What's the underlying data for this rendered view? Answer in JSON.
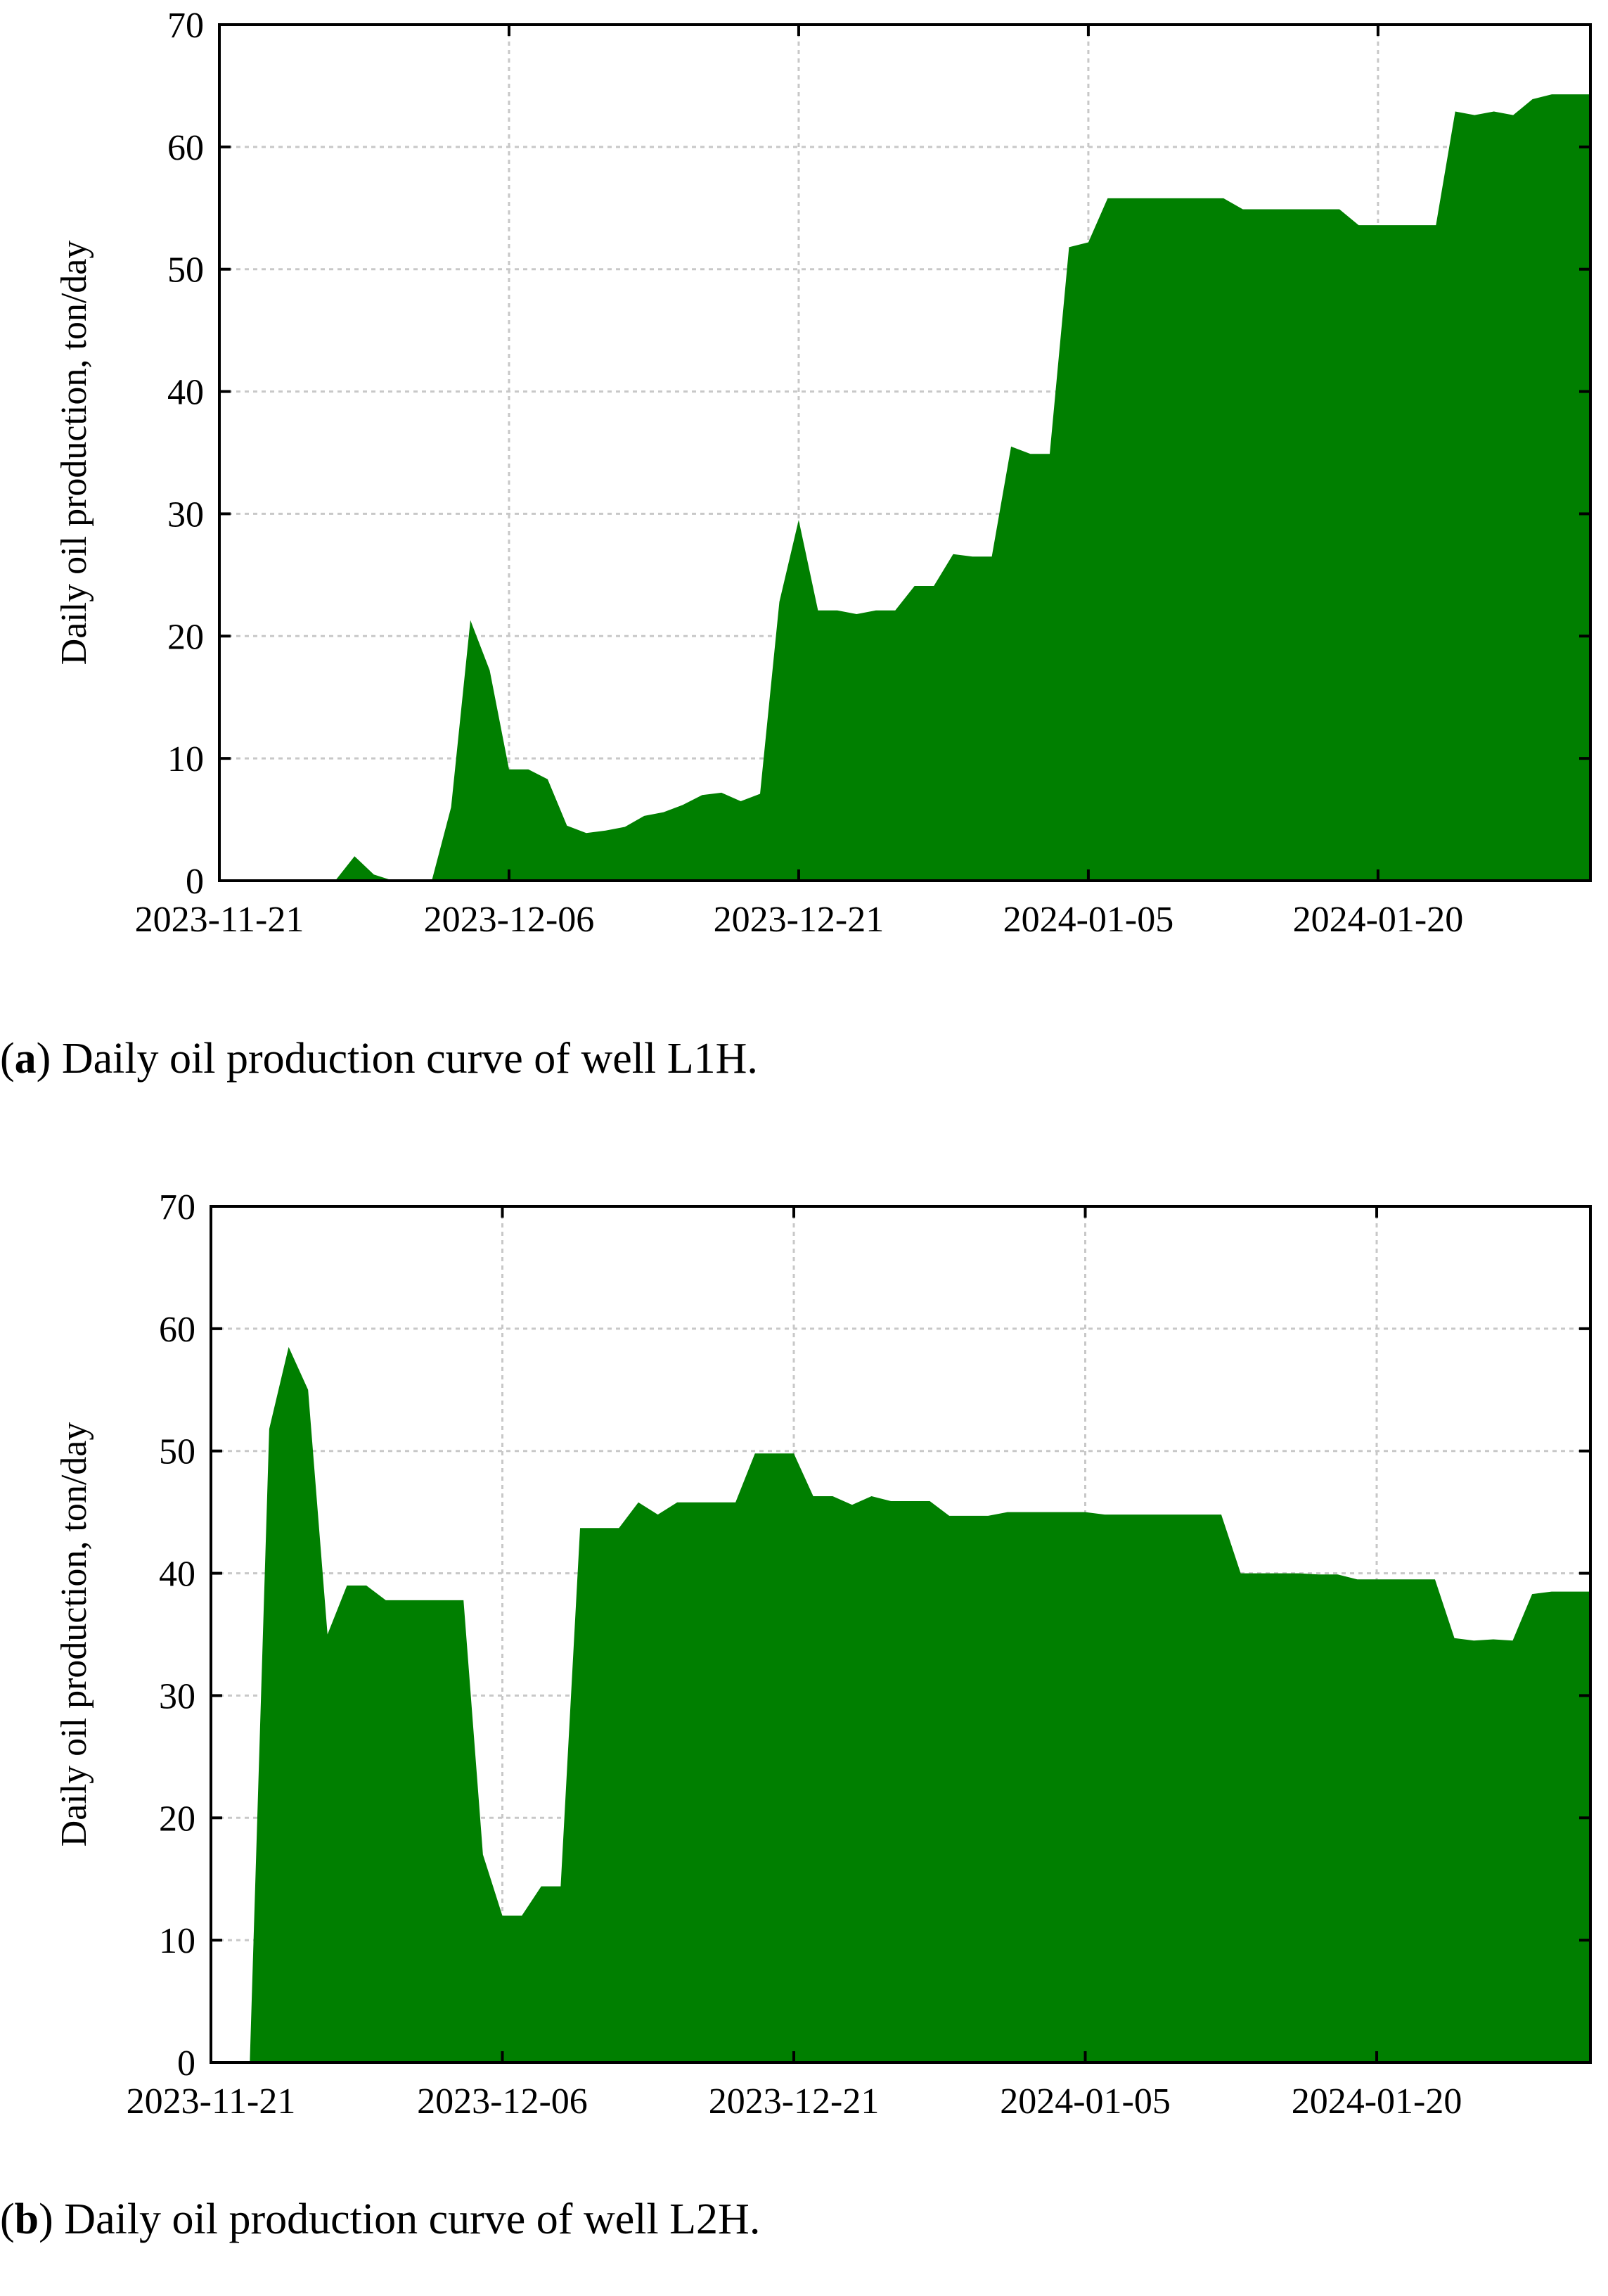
{
  "chart_data": [
    {
      "type": "area",
      "title": "",
      "ylabel": "Daily oil production, ton/day",
      "xlabel": "",
      "x_ticks": [
        "2023-11-21",
        "2023-12-06",
        "2023-12-21",
        "2024-01-05",
        "2024-01-20"
      ],
      "y_ticks": [
        "0",
        "10",
        "20",
        "30",
        "40",
        "50",
        "60",
        "70"
      ],
      "xlim": [
        "2023-11-21",
        "2024-01-31"
      ],
      "ylim": [
        0,
        70
      ],
      "grid": true,
      "color": "#007f00",
      "caption_label": "a",
      "caption_text": " Daily oil production curve of well L1H.",
      "x": [
        "2023-11-27",
        "2023-11-28",
        "2023-11-29",
        "2023-11-30",
        "2023-12-01",
        "2023-12-02",
        "2023-12-03",
        "2023-12-04",
        "2023-12-05",
        "2023-12-06",
        "2023-12-07",
        "2023-12-08",
        "2023-12-09",
        "2023-12-10",
        "2023-12-11",
        "2023-12-12",
        "2023-12-13",
        "2023-12-14",
        "2023-12-15",
        "2023-12-16",
        "2023-12-17",
        "2023-12-18",
        "2023-12-19",
        "2023-12-20",
        "2023-12-21",
        "2023-12-22",
        "2023-12-23",
        "2023-12-24",
        "2023-12-25",
        "2023-12-26",
        "2023-12-27",
        "2023-12-28",
        "2023-12-29",
        "2023-12-30",
        "2023-12-31",
        "2024-01-01",
        "2024-01-02",
        "2024-01-03",
        "2024-01-04",
        "2024-01-05",
        "2024-01-06",
        "2024-01-07",
        "2024-01-08",
        "2024-01-09",
        "2024-01-10",
        "2024-01-11",
        "2024-01-12",
        "2024-01-13",
        "2024-01-14",
        "2024-01-15",
        "2024-01-16",
        "2024-01-17",
        "2024-01-18",
        "2024-01-19",
        "2024-01-20",
        "2024-01-21",
        "2024-01-22",
        "2024-01-23",
        "2024-01-24",
        "2024-01-25",
        "2024-01-26",
        "2024-01-27",
        "2024-01-28",
        "2024-01-29",
        "2024-01-30",
        "2024-01-31"
      ],
      "values": [
        0,
        2,
        0.5,
        0,
        0,
        0,
        6,
        21.3,
        17.2,
        9.1,
        9.1,
        8.3,
        4.5,
        3.9,
        4.1,
        4.4,
        5.3,
        5.6,
        6.2,
        7.0,
        7.2,
        6.5,
        7.1,
        22.8,
        29.5,
        22.1,
        22.1,
        21.8,
        22.1,
        22.1,
        24.1,
        24.1,
        26.7,
        26.5,
        26.5,
        35.5,
        34.9,
        34.9,
        51.8,
        52.2,
        55.8,
        55.8,
        55.8,
        55.8,
        55.8,
        55.8,
        55.8,
        54.9,
        54.9,
        54.9,
        54.9,
        54.9,
        54.9,
        53.6,
        53.6,
        53.6,
        53.6,
        53.6,
        62.9,
        62.6,
        62.9,
        62.6,
        63.9,
        64.3,
        64.3,
        64.3
      ]
    },
    {
      "type": "area",
      "title": "",
      "ylabel": "Daily oil production, ton/day",
      "xlabel": "",
      "x_ticks": [
        "2023-11-21",
        "2023-12-06",
        "2023-12-21",
        "2024-01-05",
        "2024-01-20"
      ],
      "y_ticks": [
        "0",
        "10",
        "20",
        "30",
        "40",
        "50",
        "60",
        "70"
      ],
      "xlim": [
        "2023-11-21",
        "2024-01-31"
      ],
      "ylim": [
        0,
        70
      ],
      "grid": true,
      "color": "#007f00",
      "caption_label": "b",
      "caption_text": " Daily oil production curve of well L2H.",
      "x": [
        "2023-11-23",
        "2023-11-24",
        "2023-11-25",
        "2023-11-26",
        "2023-11-27",
        "2023-11-28",
        "2023-11-29",
        "2023-11-30",
        "2023-12-01",
        "2023-12-02",
        "2023-12-03",
        "2023-12-04",
        "2023-12-05",
        "2023-12-06",
        "2023-12-07",
        "2023-12-08",
        "2023-12-09",
        "2023-12-10",
        "2023-12-11",
        "2023-12-12",
        "2023-12-13",
        "2023-12-14",
        "2023-12-15",
        "2023-12-16",
        "2023-12-17",
        "2023-12-18",
        "2023-12-19",
        "2023-12-20",
        "2023-12-21",
        "2023-12-22",
        "2023-12-23",
        "2023-12-24",
        "2023-12-25",
        "2023-12-26",
        "2023-12-27",
        "2023-12-28",
        "2023-12-29",
        "2023-12-30",
        "2023-12-31",
        "2024-01-01",
        "2024-01-02",
        "2024-01-03",
        "2024-01-04",
        "2024-01-05",
        "2024-01-06",
        "2024-01-07",
        "2024-01-08",
        "2024-01-09",
        "2024-01-10",
        "2024-01-11",
        "2024-01-12",
        "2024-01-13",
        "2024-01-14",
        "2024-01-15",
        "2024-01-16",
        "2024-01-17",
        "2024-01-18",
        "2024-01-19",
        "2024-01-20",
        "2024-01-21",
        "2024-01-22",
        "2024-01-23",
        "2024-01-24",
        "2024-01-25",
        "2024-01-26",
        "2024-01-27",
        "2024-01-28",
        "2024-01-29",
        "2024-01-30",
        "2024-01-31"
      ],
      "values": [
        0,
        51.8,
        58.5,
        55,
        35,
        39,
        39,
        37.8,
        37.8,
        37.8,
        37.8,
        37.8,
        17,
        12,
        12,
        14.4,
        14.4,
        43.7,
        43.7,
        43.7,
        45.8,
        44.8,
        45.8,
        45.8,
        45.8,
        45.8,
        49.8,
        49.8,
        49.8,
        46.3,
        46.3,
        45.6,
        46.3,
        45.9,
        45.9,
        45.9,
        44.7,
        44.7,
        44.7,
        45,
        45,
        45,
        45,
        45,
        44.8,
        44.8,
        44.8,
        44.8,
        44.8,
        44.8,
        44.8,
        40,
        40,
        40,
        40,
        39.9,
        39.9,
        39.5,
        39.5,
        39.5,
        39.5,
        39.5,
        34.7,
        34.5,
        34.6,
        34.5,
        38.3,
        38.5,
        38.5,
        38.5
      ]
    }
  ]
}
